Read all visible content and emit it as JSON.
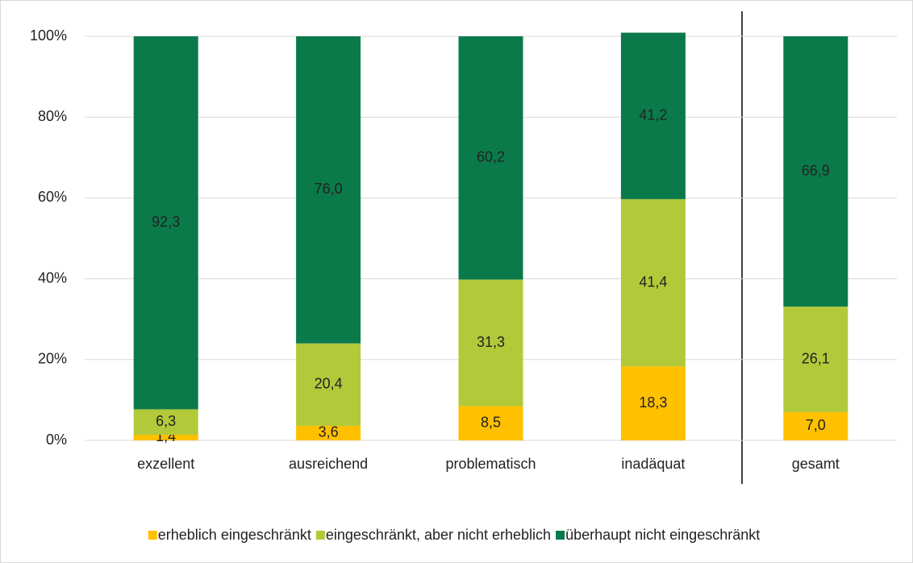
{
  "chart_data": {
    "type": "stacked_bar",
    "categories": [
      "exzellent",
      "ausreichend",
      "problematisch",
      "inadäquat",
      "gesamt"
    ],
    "series": [
      {
        "name": "erheblich eingeschränkt",
        "color": "#ffc000",
        "values": [
          1.4,
          3.6,
          8.5,
          18.3,
          7.0
        ],
        "value_labels": [
          "1,4",
          "3,6",
          "8,5",
          "18,3",
          "7,0"
        ]
      },
      {
        "name": "eingeschränkt, aber nicht erheblich",
        "color": "#b2c93a",
        "values": [
          6.3,
          20.4,
          31.3,
          41.4,
          26.1
        ],
        "value_labels": [
          "6,3",
          "20,4",
          "31,3",
          "41,4",
          "26,1"
        ]
      },
      {
        "name": "überhaupt nicht eingeschränkt",
        "color": "#0b7a4b",
        "values": [
          92.3,
          76.0,
          60.2,
          41.2,
          66.9
        ],
        "value_labels": [
          "92,3",
          "76,0",
          "60,2",
          "41,2",
          "66,9"
        ]
      }
    ],
    "ylim": [
      0,
      100
    ],
    "yticks": [
      {
        "value": 0,
        "label": "0%"
      },
      {
        "value": 20,
        "label": "20%"
      },
      {
        "value": 40,
        "label": "40%"
      },
      {
        "value": 60,
        "label": "60%"
      },
      {
        "value": 80,
        "label": "80%"
      },
      {
        "value": 100,
        "label": "100%"
      }
    ],
    "grid": true,
    "legend": "bottom"
  }
}
